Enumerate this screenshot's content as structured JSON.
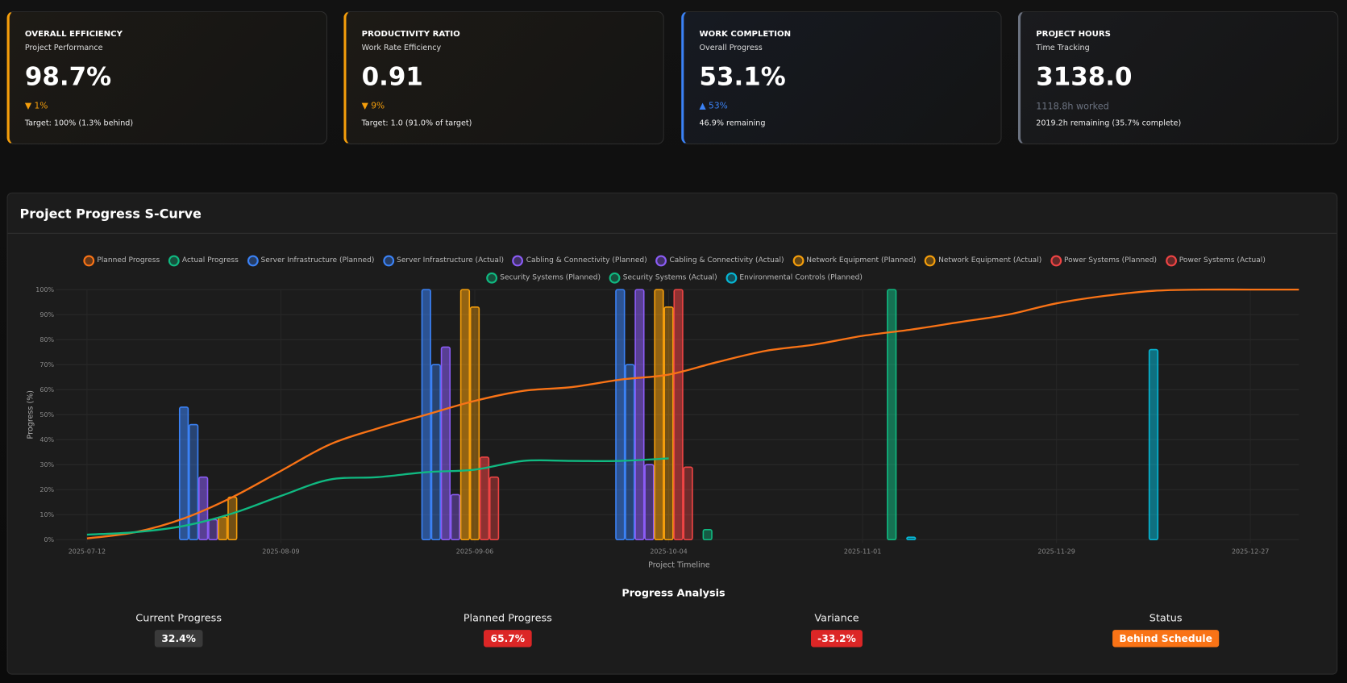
{
  "kpis": [
    {
      "title": "OVERALL EFFICIENCY",
      "subtitle": "Project Performance",
      "value": "98.7%",
      "change": "▼ 1%",
      "footer": "Target: 100% (1.3% behind)"
    },
    {
      "title": "PRODUCTIVITY RATIO",
      "subtitle": "Work Rate Efficiency",
      "value": "0.91",
      "change": "▼ 9%",
      "footer": "Target: 1.0 (91.0% of target)"
    },
    {
      "title": "WORK COMPLETION",
      "subtitle": "Overall Progress",
      "value": "53.1%",
      "change": "▲ 53%",
      "footer": "46.9% remaining"
    },
    {
      "title": "PROJECT HOURS",
      "subtitle": "Time Tracking",
      "value": "3138.0",
      "change": "1118.8h worked",
      "footer": "2019.2h remaining (35.7% complete)"
    }
  ],
  "panel": {
    "title": "Project Progress S-Curve"
  },
  "chart_data": {
    "type": "combo",
    "y_label": "Progress (%)",
    "x_label": "Project Timeline",
    "xlim": [
      "2025-07-08",
      "2026-01-03"
    ],
    "xticks": [
      "2025-07-12",
      "2025-08-09",
      "2025-09-06",
      "2025-10-04",
      "2025-11-01",
      "2025-11-29",
      "2025-12-27"
    ],
    "ylim": [
      0,
      100
    ],
    "yticks": [
      {
        "value": 0,
        "label": "0%"
      },
      {
        "value": 10,
        "label": "10%"
      },
      {
        "value": 20,
        "label": "20%"
      },
      {
        "value": 30,
        "label": "30%"
      },
      {
        "value": 40,
        "label": "40%"
      },
      {
        "value": 50,
        "label": "50%"
      },
      {
        "value": 60,
        "label": "60%"
      },
      {
        "value": 70,
        "label": "70%"
      },
      {
        "value": 80,
        "label": "80%"
      },
      {
        "value": 90,
        "label": "90%"
      },
      {
        "value": 100,
        "label": "100%"
      }
    ],
    "grid": true,
    "bar_x": [
      "2025-08-02",
      "2025-09-06",
      "2025-10-04",
      "2025-11-01",
      "2025-12-06"
    ],
    "series": [
      {
        "name": "Planned Progress",
        "color": "#f97316",
        "type": "line",
        "x": [
          "2025-07-12",
          "2025-07-19",
          "2025-07-26",
          "2025-08-02",
          "2025-08-09",
          "2025-08-16",
          "2025-08-23",
          "2025-08-30",
          "2025-09-06",
          "2025-09-13",
          "2025-09-20",
          "2025-09-27",
          "2025-10-04",
          "2025-10-11",
          "2025-10-18",
          "2025-10-25",
          "2025-11-01",
          "2025-11-08",
          "2025-11-15",
          "2025-11-22",
          "2025-11-29",
          "2025-12-06",
          "2025-12-13",
          "2025-12-20",
          "2025-12-27",
          "2026-01-03"
        ],
        "values": [
          0.5,
          3,
          8.5,
          17,
          27.5,
          38,
          44.5,
          50,
          55.5,
          59.5,
          61,
          64,
          66,
          71,
          75.5,
          78,
          81.5,
          84,
          87,
          90,
          94.5,
          97.5,
          99.5,
          100,
          100,
          100
        ]
      },
      {
        "name": "Actual Progress",
        "color": "#10b981",
        "type": "line",
        "x": [
          "2025-07-12",
          "2025-07-19",
          "2025-07-26",
          "2025-08-02",
          "2025-08-09",
          "2025-08-16",
          "2025-08-23",
          "2025-08-30",
          "2025-09-06",
          "2025-09-13",
          "2025-09-20",
          "2025-09-27",
          "2025-10-04"
        ],
        "values": [
          2,
          3,
          5.5,
          10.5,
          17.5,
          24,
          25,
          27,
          28,
          31.5,
          31.5,
          31.5,
          32.5
        ]
      },
      {
        "name": "Server Infrastructure (Planned)",
        "color": "#3b82f6",
        "type": "bar",
        "values": [
          53,
          100,
          100,
          null,
          null
        ]
      },
      {
        "name": "Server Infrastructure (Actual)",
        "color": "#3b82f6",
        "type": "bar",
        "values": [
          46,
          70,
          70,
          null,
          null
        ]
      },
      {
        "name": "Cabling & Connectivity (Planned)",
        "color": "#8b5cf6",
        "type": "bar",
        "values": [
          25,
          77,
          100,
          null,
          null
        ]
      },
      {
        "name": "Cabling & Connectivity (Actual)",
        "color": "#8b5cf6",
        "type": "bar",
        "values": [
          8,
          18,
          30,
          null,
          null
        ]
      },
      {
        "name": "Network Equipment (Planned)",
        "color": "#f59e0b",
        "type": "bar",
        "values": [
          9,
          100,
          100,
          null,
          null
        ]
      },
      {
        "name": "Network Equipment (Actual)",
        "color": "#f59e0b",
        "type": "bar",
        "values": [
          17,
          93,
          93,
          null,
          null
        ]
      },
      {
        "name": "Power Systems (Planned)",
        "color": "#ef4444",
        "type": "bar",
        "values": [
          null,
          33,
          100,
          null,
          null
        ]
      },
      {
        "name": "Power Systems (Actual)",
        "color": "#ef4444",
        "type": "bar",
        "values": [
          null,
          25,
          29,
          null,
          null
        ]
      },
      {
        "name": "Security Systems (Planned)",
        "color": "#10b981",
        "type": "bar",
        "values": [
          null,
          null,
          null,
          100,
          null
        ]
      },
      {
        "name": "Security Systems (Actual)",
        "color": "#10b981",
        "type": "bar",
        "values": [
          null,
          null,
          4,
          null,
          null
        ]
      },
      {
        "name": "Environmental Controls (Planned)",
        "color": "#06b6d4",
        "type": "bar",
        "values": [
          null,
          null,
          null,
          1,
          76
        ]
      }
    ]
  },
  "analysis": {
    "title": "Progress Analysis",
    "items": [
      {
        "label": "Current Progress",
        "value": "32.4%"
      },
      {
        "label": "Planned Progress",
        "value": "65.7%"
      },
      {
        "label": "Variance",
        "value": "-33.2%"
      },
      {
        "label": "Status",
        "value": "Behind Schedule"
      }
    ]
  }
}
